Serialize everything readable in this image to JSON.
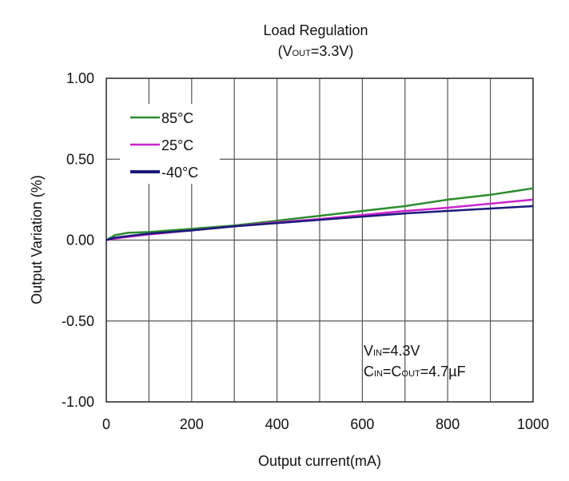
{
  "chart_data": {
    "type": "line",
    "title": "Load Regulation",
    "subtitle": {
      "prefix": "(V",
      "sub": "OUT",
      "suffix": "=3.3V)"
    },
    "xlabel": "Output current(mA)",
    "ylabel": "Output Variation (%)",
    "xlim": [
      0,
      1000
    ],
    "ylim": [
      -1.0,
      1.0
    ],
    "xticks": [
      0,
      200,
      400,
      600,
      800,
      1000
    ],
    "yticks": [
      "1.00",
      "0.50",
      "0.00",
      "-0.50",
      "-1.00"
    ],
    "ytick_values": [
      1.0,
      0.5,
      0.0,
      -0.5,
      -1.0
    ],
    "grid": true,
    "legend_position": "top-left",
    "annotations": [
      {
        "parts": [
          [
            "V",
            ""
          ],
          [
            "IN",
            "sub"
          ],
          [
            "=4.3V",
            ""
          ]
        ]
      },
      {
        "parts": [
          [
            "C",
            ""
          ],
          [
            "IN",
            "sub"
          ],
          [
            "=C",
            ""
          ],
          [
            "OUT",
            "sub"
          ],
          [
            "=4.7µF",
            ""
          ]
        ]
      }
    ],
    "series": [
      {
        "name": "85°C",
        "color": "#2e8b2e",
        "x": [
          0,
          20,
          50,
          100,
          200,
          300,
          400,
          500,
          600,
          700,
          800,
          900,
          1000
        ],
        "y": [
          0,
          0.03,
          0.045,
          0.05,
          0.07,
          0.09,
          0.12,
          0.15,
          0.18,
          0.21,
          0.25,
          0.28,
          0.32
        ]
      },
      {
        "name": "25°C",
        "color": "#cc22cc",
        "x": [
          0,
          20,
          50,
          100,
          200,
          300,
          400,
          500,
          600,
          700,
          800,
          900,
          1000
        ],
        "y": [
          0,
          0.01,
          0.02,
          0.035,
          0.06,
          0.085,
          0.11,
          0.13,
          0.155,
          0.18,
          0.2,
          0.225,
          0.25
        ]
      },
      {
        "name": "-40°C",
        "color": "#1a1a7a",
        "x": [
          0,
          20,
          50,
          100,
          200,
          300,
          400,
          500,
          600,
          700,
          800,
          900,
          1000
        ],
        "y": [
          0,
          0.015,
          0.025,
          0.04,
          0.06,
          0.085,
          0.105,
          0.125,
          0.145,
          0.165,
          0.18,
          0.195,
          0.21
        ]
      }
    ]
  }
}
